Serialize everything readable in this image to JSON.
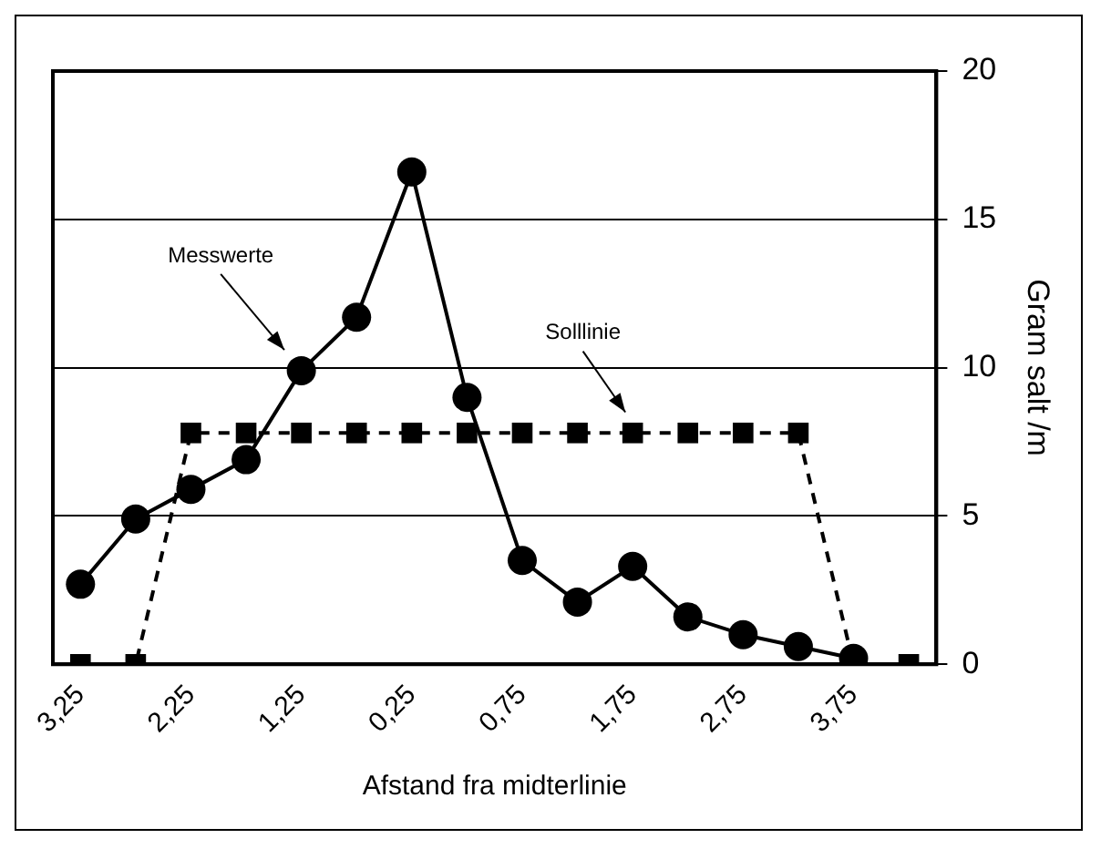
{
  "chart_data": {
    "type": "line",
    "xlabel": "Afstand fra midterlinie",
    "ylabel": "Gram salt /m",
    "categories": [
      "3,25",
      null,
      "2,25",
      null,
      "1,25",
      null,
      "0,25",
      null,
      "0,75",
      null,
      "1,75",
      null,
      "2,75",
      null,
      "3,75",
      null
    ],
    "series": [
      {
        "color": "#000000",
        "marker": "circle",
        "line_style": "solid",
        "values": [
          2.7,
          4.9,
          5.9,
          6.9,
          9.9,
          11.7,
          16.6,
          9.0,
          3.5,
          2.1,
          3.3,
          1.6,
          1.0,
          0.6,
          0.2,
          null
        ]
      },
      {
        "color": "#000000",
        "marker": "square",
        "line_style": "dashed",
        "values": [
          0,
          0,
          7.8,
          7.8,
          7.8,
          7.8,
          7.8,
          7.8,
          7.8,
          7.8,
          7.8,
          7.8,
          7.8,
          7.8,
          0,
          0
        ]
      }
    ],
    "ylim": [
      0,
      20
    ],
    "yticks": [
      0,
      5,
      10,
      15,
      20
    ],
    "grid": "y",
    "legend": false,
    "annotations": [
      "Messwerte",
      "Solllinie"
    ]
  }
}
